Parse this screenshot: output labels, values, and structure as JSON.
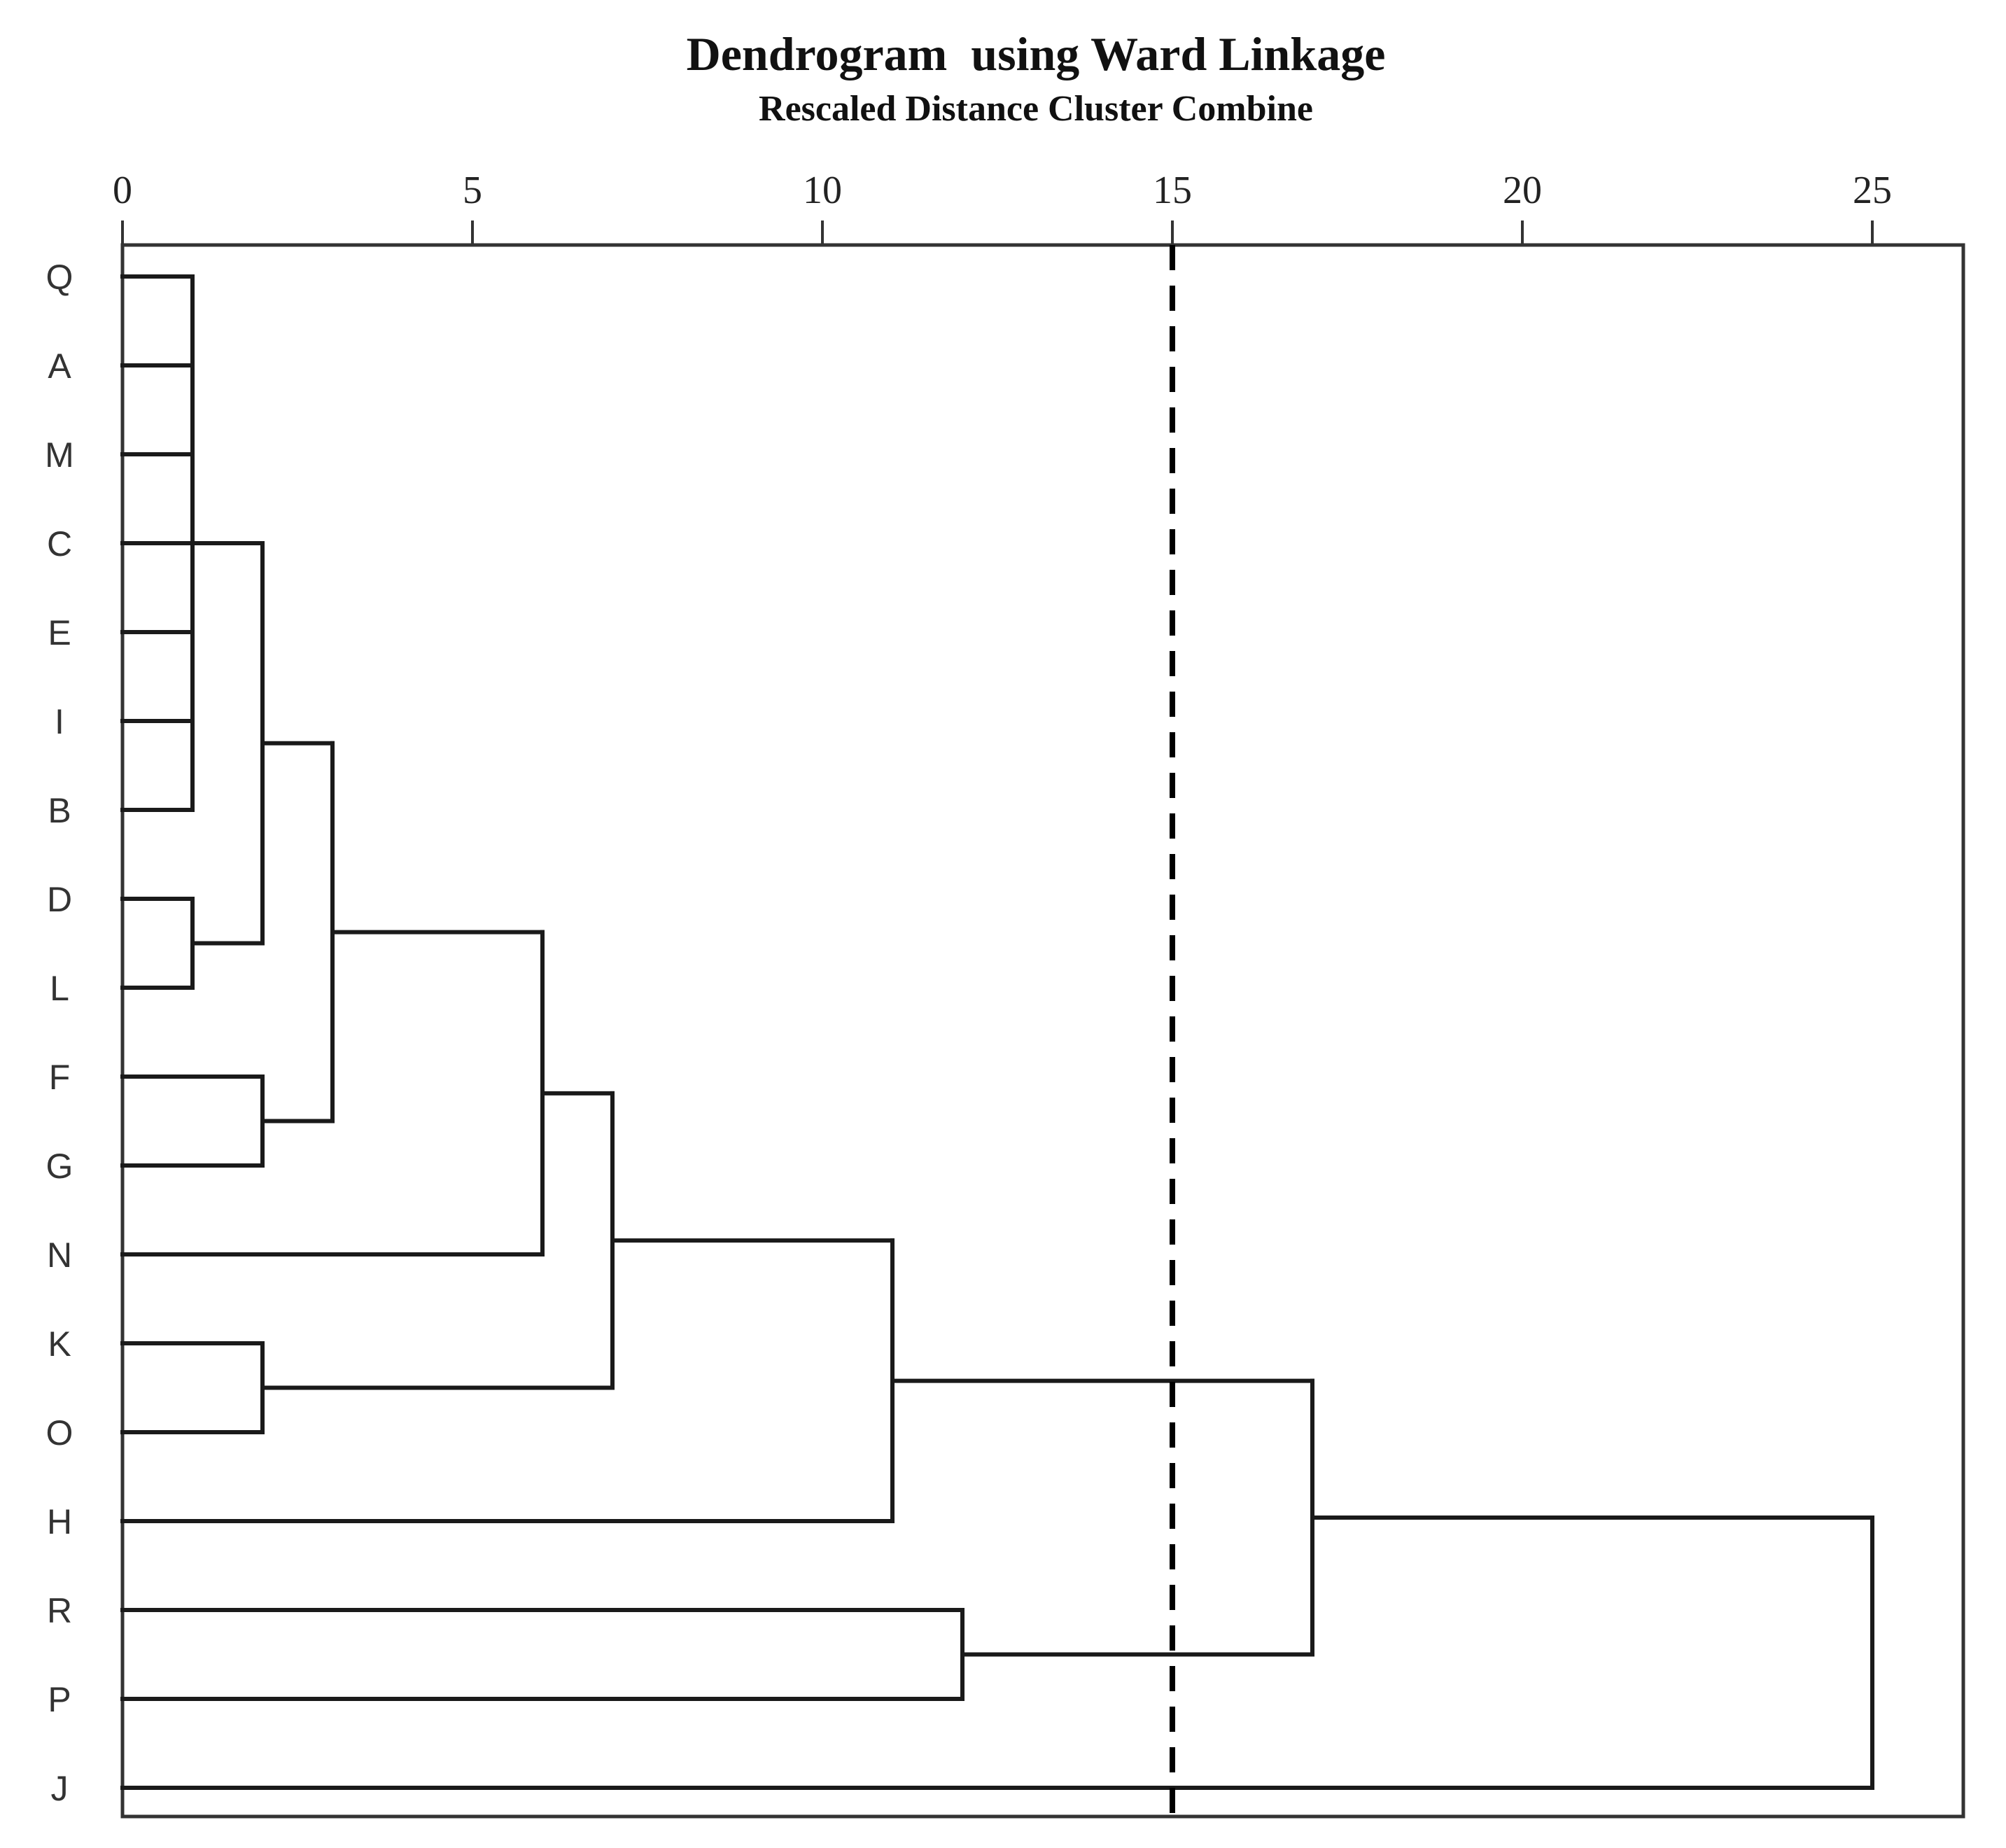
{
  "chart_data": {
    "type": "dendrogram",
    "title": "Dendrogram  using Ward Linkage",
    "subtitle": "Rescaled Distance Cluster Combine",
    "x_ticks": [
      0,
      5,
      10,
      15,
      20,
      25
    ],
    "xlim": [
      0,
      26.3
    ],
    "cut_line": 15,
    "leaves": [
      "Q",
      "A",
      "M",
      "C",
      "E",
      "I",
      "B",
      "D",
      "L",
      "F",
      "G",
      "N",
      "K",
      "O",
      "H",
      "R",
      "P",
      "J"
    ],
    "merges": [
      {
        "id": "c1",
        "children": [
          "Q",
          "A",
          "M",
          "C",
          "E",
          "I",
          "B"
        ],
        "height": 1
      },
      {
        "id": "c2",
        "children": [
          "D",
          "L"
        ],
        "height": 1
      },
      {
        "id": "c3",
        "children": [
          "c1",
          "c2"
        ],
        "height": 2
      },
      {
        "id": "c4",
        "children": [
          "F",
          "G"
        ],
        "height": 2
      },
      {
        "id": "c5",
        "children": [
          "c3",
          "c4"
        ],
        "height": 3
      },
      {
        "id": "c6",
        "children": [
          "c5",
          "N"
        ],
        "height": 6
      },
      {
        "id": "c7",
        "children": [
          "K",
          "O"
        ],
        "height": 2
      },
      {
        "id": "c8",
        "children": [
          "c6",
          "c7"
        ],
        "height": 7
      },
      {
        "id": "c9",
        "children": [
          "c8",
          "H"
        ],
        "height": 11
      },
      {
        "id": "c10",
        "children": [
          "R",
          "P"
        ],
        "height": 12
      },
      {
        "id": "c11",
        "children": [
          "c9",
          "c10"
        ],
        "height": 17
      },
      {
        "id": "c12",
        "children": [
          "c11",
          "J"
        ],
        "height": 25
      }
    ],
    "colors": {
      "line": "#1a1a1a",
      "frame": "#333333",
      "text": "#222222"
    }
  }
}
